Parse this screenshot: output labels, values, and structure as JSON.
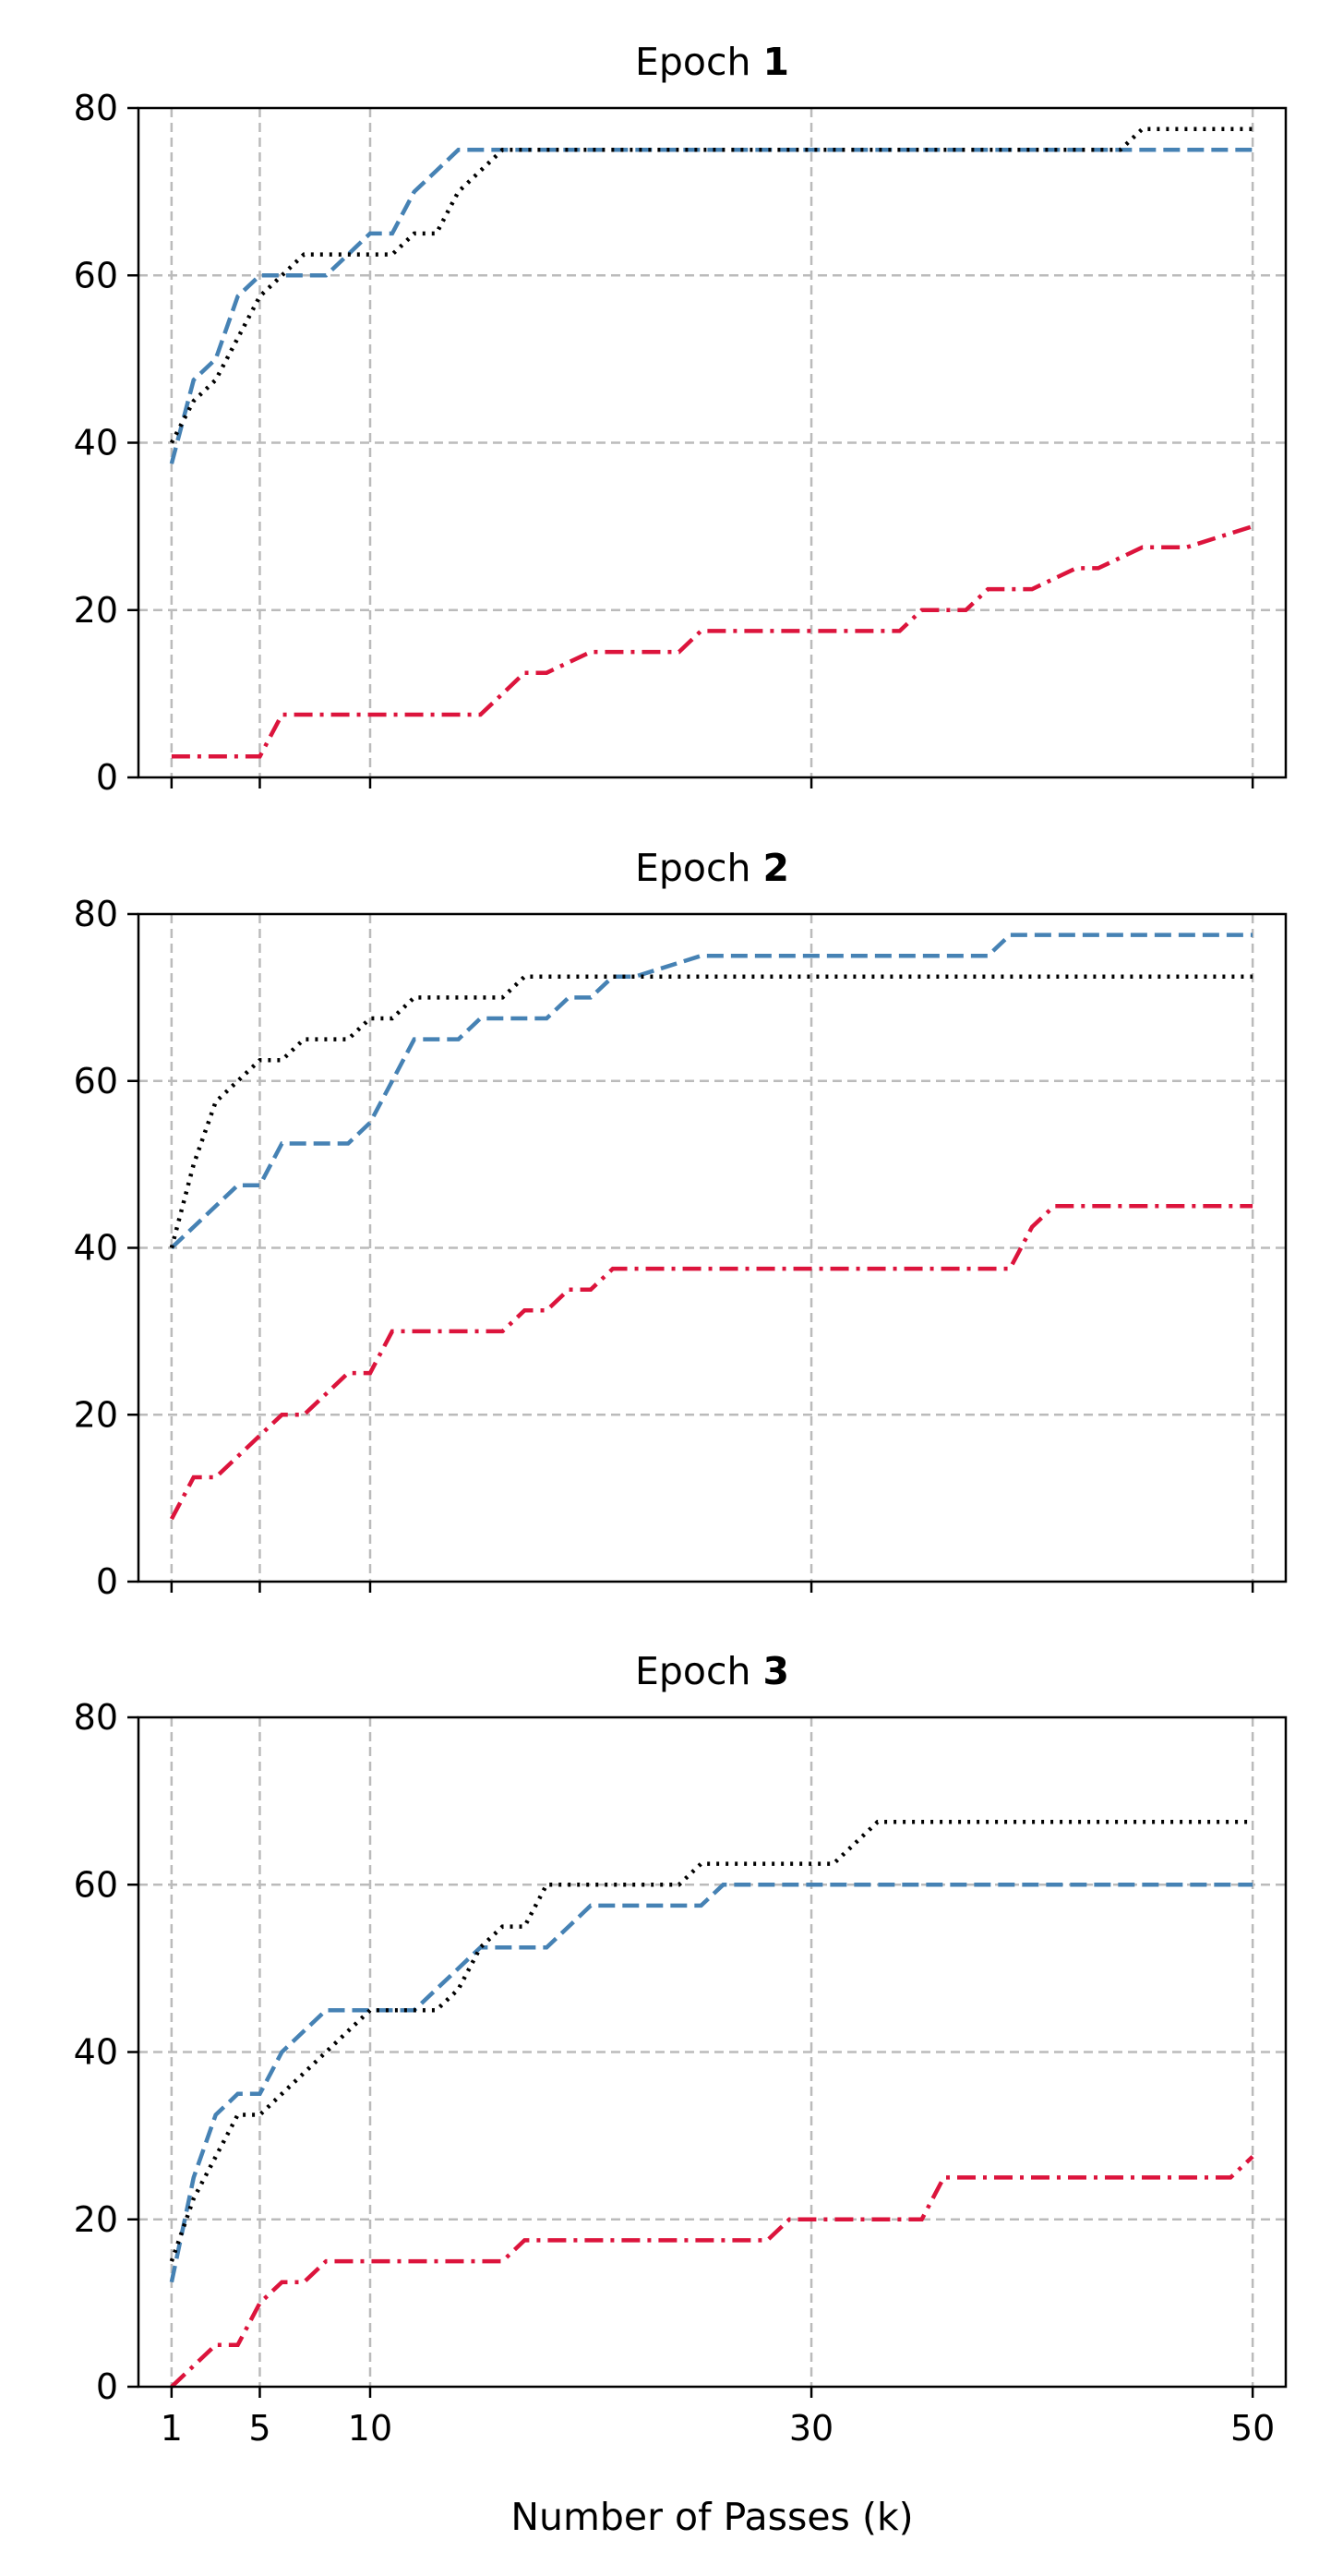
{
  "chart_data": {
    "type": "line",
    "xlabel": "Number of Passes (k)",
    "xlim": [
      -0.5,
      51.5
    ],
    "xticks": [
      1,
      5,
      10,
      30,
      50
    ],
    "ylim": [
      0,
      80
    ],
    "yticks": [
      0,
      20,
      40,
      60,
      80
    ],
    "grid": true,
    "grid_style": "dashed",
    "legend": "none",
    "shared_x": true,
    "colors": {
      "blue_dashed": "#4682b4",
      "black_dotted": "#000000",
      "red_dashdot": "#dc143c",
      "grid": "#bbbbbb"
    },
    "panels": [
      {
        "title_prefix": "Epoch",
        "title_number": "1",
        "series": [
          {
            "style": "dashed",
            "color": "#4682b4",
            "x": [
              1,
              2,
              3,
              4,
              5,
              6,
              8,
              9,
              10,
              11,
              12,
              13,
              14,
              16,
              20,
              30,
              40,
              45,
              50
            ],
            "y": [
              37.5,
              47.5,
              50,
              57.5,
              60,
              60,
              60,
              62.5,
              65,
              65,
              70,
              72.5,
              75,
              75,
              75,
              75,
              75,
              75,
              75
            ]
          },
          {
            "style": "dotted",
            "color": "#000000",
            "x": [
              1,
              2,
              3,
              4,
              5,
              6,
              7,
              8,
              9,
              10,
              11,
              12,
              13,
              14,
              15,
              16,
              20,
              30,
              40,
              44,
              45,
              50
            ],
            "y": [
              40,
              45,
              47.5,
              52.5,
              57.5,
              60,
              62.5,
              62.5,
              62.5,
              62.5,
              62.5,
              65,
              65,
              70,
              72.5,
              75,
              75,
              75,
              75,
              75,
              77.5,
              77.5
            ]
          },
          {
            "style": "dashdot",
            "color": "#dc143c",
            "x": [
              1,
              5,
              6,
              8,
              10,
              12,
              14,
              15,
              16,
              17,
              18,
              20,
              21,
              24,
              25,
              30,
              34,
              35,
              37,
              38,
              40,
              42,
              43,
              45,
              47,
              50
            ],
            "y": [
              2.5,
              2.5,
              7.5,
              7.5,
              7.5,
              7.5,
              7.5,
              7.5,
              10,
              12.5,
              12.5,
              15,
              15,
              15,
              17.5,
              17.5,
              17.5,
              20,
              20,
              22.5,
              22.5,
              25,
              25,
              27.5,
              27.5,
              30
            ]
          }
        ]
      },
      {
        "title_prefix": "Epoch",
        "title_number": "2",
        "series": [
          {
            "style": "dashed",
            "color": "#4682b4",
            "x": [
              1,
              2,
              3,
              4,
              5,
              6,
              8,
              9,
              10,
              11,
              12,
              13,
              14,
              15,
              16,
              17,
              18,
              19,
              20,
              21,
              22,
              25,
              30,
              35,
              38,
              39,
              40,
              45,
              50
            ],
            "y": [
              40,
              42.5,
              45,
              47.5,
              47.5,
              52.5,
              52.5,
              52.5,
              55,
              60,
              65,
              65,
              65,
              67.5,
              67.5,
              67.5,
              67.5,
              70,
              70,
              72.5,
              72.5,
              75,
              75,
              75,
              75,
              77.5,
              77.5,
              77.5,
              77.5
            ]
          },
          {
            "style": "dotted",
            "color": "#000000",
            "x": [
              1,
              2,
              3,
              4,
              5,
              6,
              7,
              8,
              9,
              10,
              11,
              12,
              13,
              14,
              15,
              16,
              17,
              18,
              20,
              30,
              40,
              50
            ],
            "y": [
              40,
              50,
              57.5,
              60,
              62.5,
              62.5,
              65,
              65,
              65,
              67.5,
              67.5,
              70,
              70,
              70,
              70,
              70,
              72.5,
              72.5,
              72.5,
              72.5,
              72.5,
              72.5
            ]
          },
          {
            "style": "dashdot",
            "color": "#dc143c",
            "x": [
              1,
              2,
              3,
              4,
              5,
              6,
              7,
              8,
              9,
              10,
              11,
              12,
              15,
              16,
              17,
              18,
              19,
              20,
              21,
              22,
              25,
              30,
              35,
              39,
              40,
              41,
              45,
              50
            ],
            "y": [
              7.5,
              12.5,
              12.5,
              15,
              17.5,
              20,
              20,
              22.5,
              25,
              25,
              30,
              30,
              30,
              30,
              32.5,
              32.5,
              35,
              35,
              37.5,
              37.5,
              37.5,
              37.5,
              37.5,
              37.5,
              42.5,
              45,
              45,
              45
            ]
          }
        ]
      },
      {
        "title_prefix": "Epoch",
        "title_number": "3",
        "series": [
          {
            "style": "dashed",
            "color": "#4682b4",
            "x": [
              1,
              2,
              3,
              4,
              5,
              6,
              7,
              8,
              9,
              10,
              11,
              12,
              13,
              14,
              15,
              16,
              17,
              18,
              19,
              20,
              25,
              26,
              30,
              40,
              50
            ],
            "y": [
              12.5,
              25,
              32.5,
              35,
              35,
              40,
              42.5,
              45,
              45,
              45,
              45,
              45,
              47.5,
              50,
              52.5,
              52.5,
              52.5,
              52.5,
              55,
              57.5,
              57.5,
              60,
              60,
              60,
              60
            ]
          },
          {
            "style": "dotted",
            "color": "#000000",
            "x": [
              1,
              2,
              3,
              4,
              5,
              6,
              7,
              8,
              9,
              10,
              11,
              12,
              13,
              14,
              15,
              16,
              17,
              18,
              20,
              22,
              24,
              25,
              28,
              30,
              31,
              32,
              33,
              35,
              40,
              50
            ],
            "y": [
              15,
              22.5,
              27.5,
              32.5,
              32.5,
              35,
              37.5,
              40,
              42.5,
              45,
              45,
              45,
              45,
              47.5,
              52.5,
              55,
              55,
              60,
              60,
              60,
              60,
              62.5,
              62.5,
              62.5,
              62.5,
              65,
              67.5,
              67.5,
              67.5,
              67.5
            ]
          },
          {
            "style": "dashdot",
            "color": "#dc143c",
            "x": [
              1,
              2,
              3,
              4,
              5,
              6,
              7,
              8,
              9,
              10,
              15,
              16,
              17,
              20,
              25,
              26,
              27,
              28,
              29,
              30,
              35,
              36,
              37,
              40,
              45,
              49,
              50
            ],
            "y": [
              0,
              2.5,
              5,
              5,
              10,
              12.5,
              12.5,
              15,
              15,
              15,
              15,
              15,
              17.5,
              17.5,
              17.5,
              17.5,
              17.5,
              17.5,
              20,
              20,
              20,
              25,
              25,
              25,
              25,
              25,
              27.5
            ]
          }
        ]
      }
    ]
  }
}
